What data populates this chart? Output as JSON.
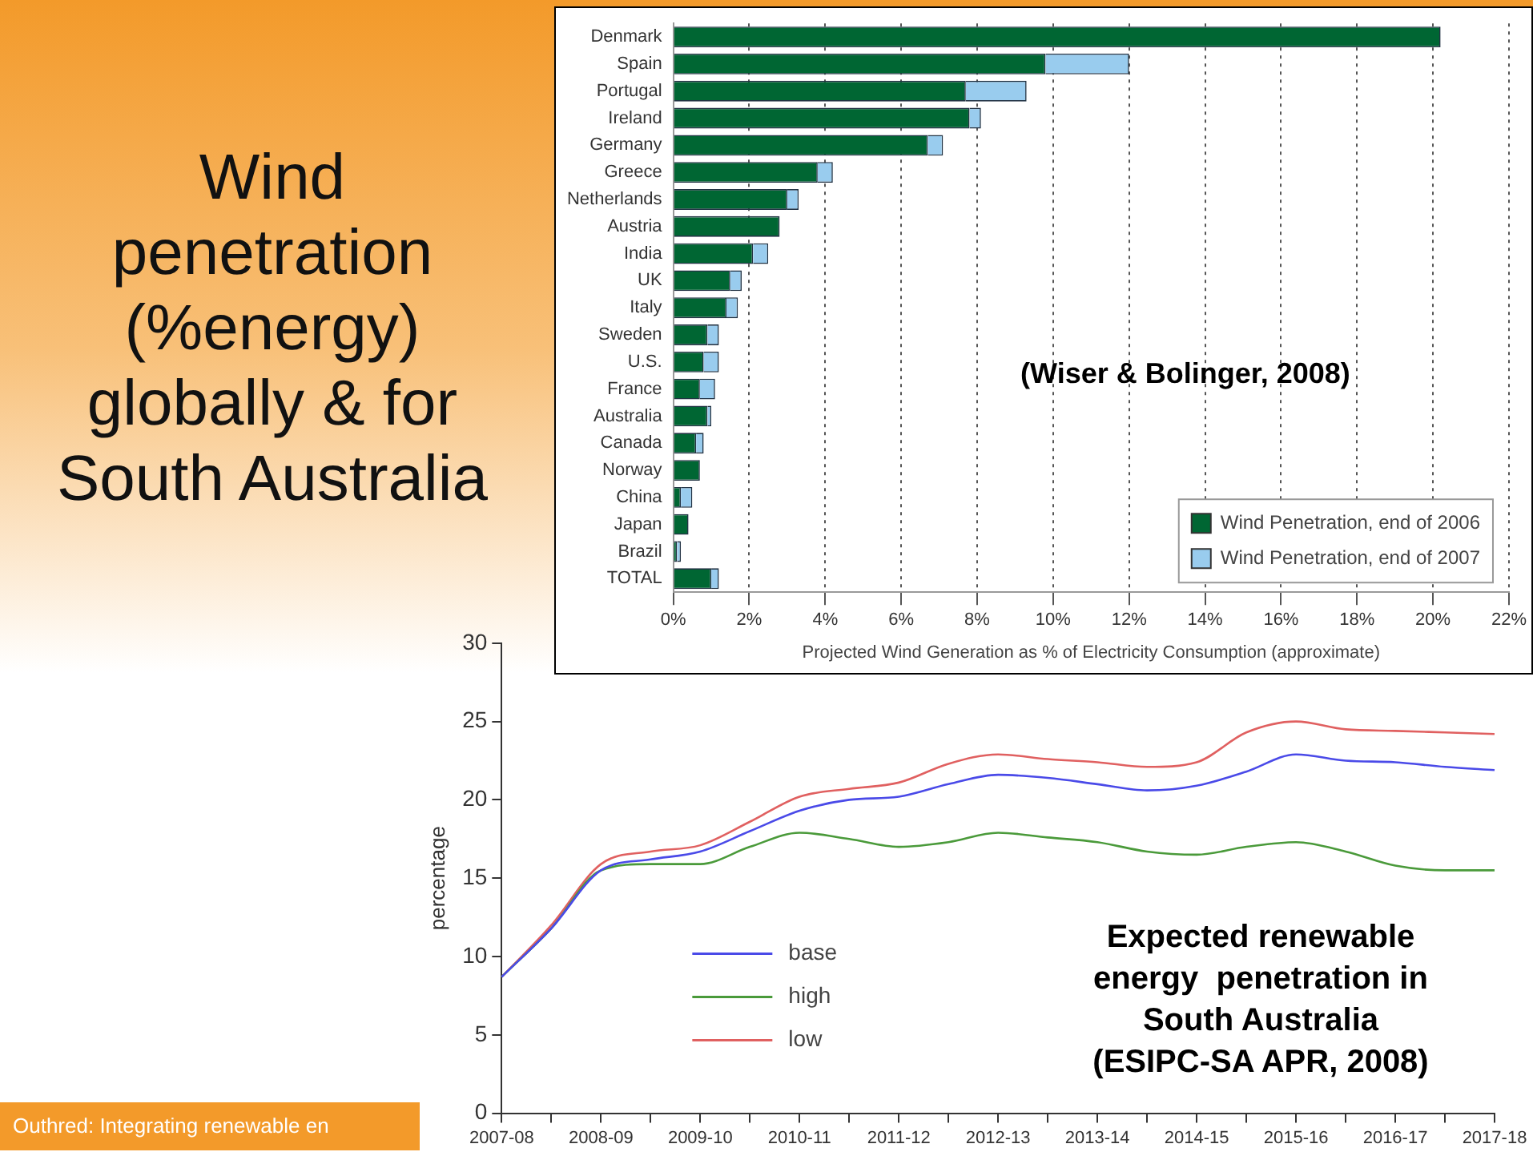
{
  "chart_data": [
    {
      "type": "bar",
      "orientation": "horizontal",
      "stacked": true,
      "title": "Wind penetration (%energy) globally & for South Australia",
      "xlabel": "Projected Wind Generation as % of Electricity Consumption (approximate)",
      "categories": [
        "Denmark",
        "Spain",
        "Portugal",
        "Ireland",
        "Germany",
        "Greece",
        "Netherlands",
        "Austria",
        "India",
        "UK",
        "Italy",
        "Sweden",
        "U.S.",
        "France",
        "Australia",
        "Canada",
        "Norway",
        "China",
        "Japan",
        "Brazil",
        "TOTAL"
      ],
      "series": [
        {
          "name": "Wind Penetration, end of 2006",
          "color": "#006633",
          "values": [
            20.2,
            9.8,
            7.7,
            7.8,
            6.7,
            3.8,
            3.0,
            2.8,
            2.1,
            1.5,
            1.4,
            0.9,
            0.8,
            0.7,
            0.9,
            0.6,
            0.7,
            0.2,
            0.4,
            0.1,
            1.0
          ]
        },
        {
          "name": "Wind Penetration, end of 2007",
          "color": "#99ccee",
          "values": [
            0,
            2.2,
            1.6,
            0.3,
            0.4,
            0.4,
            0.3,
            0,
            0.4,
            0.3,
            0.3,
            0.3,
            0.4,
            0.4,
            0.1,
            0.2,
            0,
            0.3,
            0,
            0.1,
            0.2
          ]
        }
      ],
      "xlim": [
        0,
        22
      ],
      "xticks": [
        {
          "value": 0,
          "label": "0%"
        },
        {
          "value": 2,
          "label": "2%"
        },
        {
          "value": 4,
          "label": "4%"
        },
        {
          "value": 6,
          "label": "6%"
        },
        {
          "value": 8,
          "label": "8%"
        },
        {
          "value": 10,
          "label": "10%"
        },
        {
          "value": 12,
          "label": "12%"
        },
        {
          "value": 14,
          "label": "14%"
        },
        {
          "value": 16,
          "label": "16%"
        },
        {
          "value": 18,
          "label": "18%"
        },
        {
          "value": 20,
          "label": "20%"
        },
        {
          "value": 22,
          "label": "22%"
        }
      ],
      "grid": "x",
      "legend": "bottom right",
      "annotations": [
        "(Wiser & Bolinger, 2008)"
      ]
    },
    {
      "type": "line",
      "categories": [
        "2007-08",
        null,
        "2008-09",
        null,
        "2009-10",
        null,
        "2010-11",
        null,
        "2011-12",
        null,
        "2012-13",
        null,
        "2013-14",
        null,
        "2014-15",
        null,
        "2015-16",
        null,
        "2016-17",
        null,
        "2017-18"
      ],
      "ylim": [
        0,
        30
      ],
      "yticks": [
        0,
        5,
        10,
        15,
        20,
        25,
        30
      ],
      "ylabel": "percentage",
      "grid": false,
      "marker": "none",
      "legend": "bottom left",
      "series": [
        {
          "name": "base",
          "color": "#4a4ae8",
          "values": [
            8.7,
            11.8,
            15.5,
            16.2,
            16.7,
            18.0,
            19.3,
            20.0,
            20.2,
            21.0,
            21.6,
            21.4,
            21.0,
            20.6,
            20.9,
            21.8,
            22.9,
            22.5,
            22.4,
            22.1,
            21.9
          ]
        },
        {
          "name": "high",
          "color": "#4a9a3a",
          "values": [
            8.7,
            11.8,
            15.5,
            15.9,
            15.9,
            17.0,
            17.9,
            17.5,
            17.0,
            17.3,
            17.9,
            17.6,
            17.3,
            16.7,
            16.5,
            17.0,
            17.3,
            16.7,
            15.8,
            15.5,
            15.5
          ]
        },
        {
          "name": "low",
          "color": "#e06060",
          "values": [
            8.7,
            12.0,
            15.9,
            16.7,
            17.1,
            18.6,
            20.2,
            20.7,
            21.1,
            22.3,
            22.9,
            22.6,
            22.4,
            22.1,
            22.4,
            24.3,
            25.0,
            24.5,
            24.4,
            24.3,
            24.2
          ]
        }
      ],
      "annotations": [
        "Expected renewable\nenergy  penetration in\nSouth Australia\n(ESIPC-SA APR, 2008)",
        "Outhred: Integrating renewable en"
      ]
    }
  ]
}
